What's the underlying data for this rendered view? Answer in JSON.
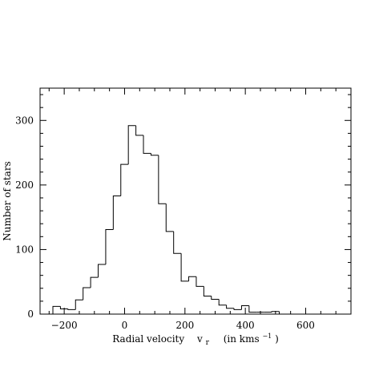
{
  "chart_data": {
    "type": "histogram",
    "xlabel_main": "Radial velocity",
    "xlabel_symbol": "v",
    "xlabel_subscript": "r",
    "xlabel_units": "(in kms",
    "xlabel_units_exp": "−1",
    "xlabel_units_close": ")",
    "ylabel": "Number of stars",
    "xlim": [
      -280,
      750
    ],
    "ylim": [
      0,
      350
    ],
    "x_major_ticks": [
      -200,
      0,
      200,
      400,
      600
    ],
    "x_tick_labels": [
      "−200",
      "0",
      "200",
      "400",
      "600"
    ],
    "y_major_ticks": [
      0,
      100,
      200,
      300
    ],
    "y_tick_labels": [
      "0",
      "100",
      "200",
      "300"
    ],
    "x_minor_step": 50,
    "y_minor_step": 20,
    "bin_width": 25,
    "bins": [
      {
        "x0": -237.5,
        "count": 12
      },
      {
        "x0": -212.5,
        "count": 8
      },
      {
        "x0": -187.5,
        "count": 7
      },
      {
        "x0": -162.5,
        "count": 22
      },
      {
        "x0": -137.5,
        "count": 41
      },
      {
        "x0": -112.5,
        "count": 57
      },
      {
        "x0": -87.5,
        "count": 77
      },
      {
        "x0": -62.5,
        "count": 131
      },
      {
        "x0": -37.5,
        "count": 183
      },
      {
        "x0": -12.5,
        "count": 232
      },
      {
        "x0": 12.5,
        "count": 292
      },
      {
        "x0": 37.5,
        "count": 277
      },
      {
        "x0": 62.5,
        "count": 249
      },
      {
        "x0": 87.5,
        "count": 246
      },
      {
        "x0": 112.5,
        "count": 171
      },
      {
        "x0": 137.5,
        "count": 128
      },
      {
        "x0": 162.5,
        "count": 94
      },
      {
        "x0": 187.5,
        "count": 51
      },
      {
        "x0": 212.5,
        "count": 58
      },
      {
        "x0": 237.5,
        "count": 43
      },
      {
        "x0": 262.5,
        "count": 28
      },
      {
        "x0": 287.5,
        "count": 23
      },
      {
        "x0": 312.5,
        "count": 14
      },
      {
        "x0": 337.5,
        "count": 9
      },
      {
        "x0": 362.5,
        "count": 7
      },
      {
        "x0": 387.5,
        "count": 13
      },
      {
        "x0": 412.5,
        "count": 3
      },
      {
        "x0": 437.5,
        "count": 3
      },
      {
        "x0": 462.5,
        "count": 3
      },
      {
        "x0": 487.5,
        "count": 4
      },
      {
        "x0": 512.5,
        "count": 0
      }
    ]
  }
}
